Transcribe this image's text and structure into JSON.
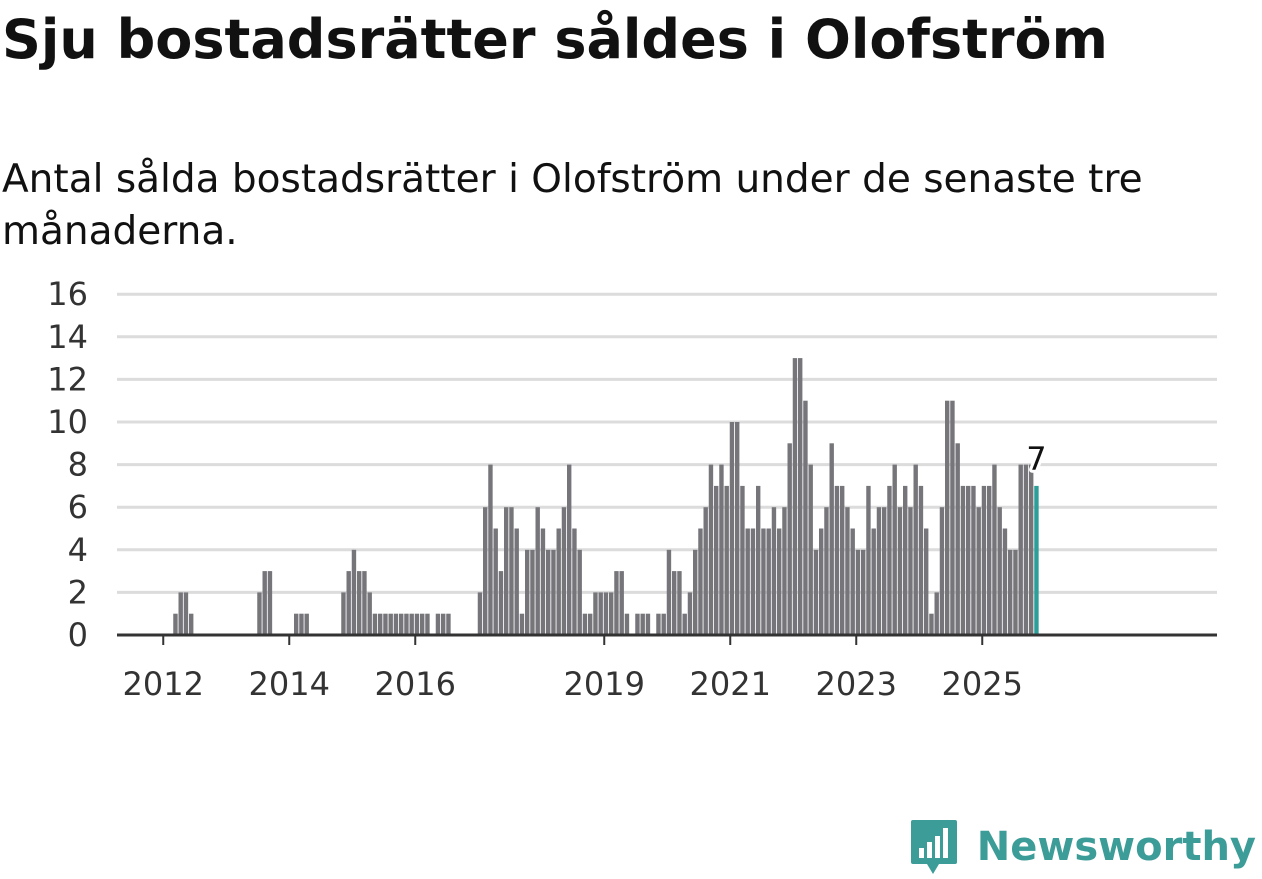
{
  "title": "Sju bostadsrätter såldes i Olofström",
  "subtitle": "Antal sålda bostadsrätter i Olofström under de senaste tre månaderna.",
  "brand": "Newsworthy",
  "colors": {
    "bar": "#76757a",
    "highlight": "#2e9f98",
    "grid": "#dcdcdc",
    "axis": "#333333",
    "brand": "#3b9c98"
  },
  "chart_data": {
    "type": "bar",
    "ylim": [
      0,
      16
    ],
    "yticks": [
      0,
      2,
      4,
      6,
      8,
      10,
      12,
      14,
      16
    ],
    "xticks": [
      "2012",
      "2014",
      "2016",
      "2019",
      "2021",
      "2023",
      "2025"
    ],
    "x_start": "2011-06",
    "x_end": "2025-03",
    "grid": true,
    "highlight_label": "7",
    "values": [
      0,
      0,
      0,
      0,
      0,
      0,
      0,
      0,
      0,
      1,
      2,
      2,
      1,
      0,
      0,
      0,
      0,
      0,
      0,
      0,
      0,
      0,
      0,
      0,
      0,
      2,
      3,
      3,
      0,
      0,
      0,
      0,
      1,
      1,
      1,
      0,
      0,
      0,
      0,
      0,
      0,
      2,
      3,
      4,
      3,
      3,
      2,
      1,
      1,
      1,
      1,
      1,
      1,
      1,
      1,
      1,
      1,
      1,
      0,
      1,
      1,
      1,
      0,
      0,
      0,
      0,
      0,
      2,
      6,
      8,
      5,
      3,
      6,
      6,
      5,
      1,
      4,
      4,
      6,
      5,
      4,
      4,
      5,
      6,
      8,
      5,
      4,
      1,
      1,
      2,
      2,
      2,
      2,
      3,
      3,
      1,
      0,
      1,
      1,
      1,
      0,
      1,
      1,
      4,
      3,
      3,
      1,
      2,
      4,
      5,
      6,
      8,
      7,
      8,
      7,
      10,
      10,
      7,
      5,
      5,
      7,
      5,
      5,
      6,
      5,
      6,
      9,
      13,
      13,
      11,
      8,
      4,
      5,
      6,
      9,
      7,
      7,
      6,
      5,
      4,
      4,
      7,
      5,
      6,
      6,
      7,
      8,
      6,
      7,
      6,
      8,
      7,
      5,
      1,
      2,
      6,
      11,
      11,
      9,
      7,
      7,
      7,
      6,
      7,
      7,
      8,
      6,
      5,
      4,
      4,
      8,
      8,
      8,
      7
    ]
  }
}
